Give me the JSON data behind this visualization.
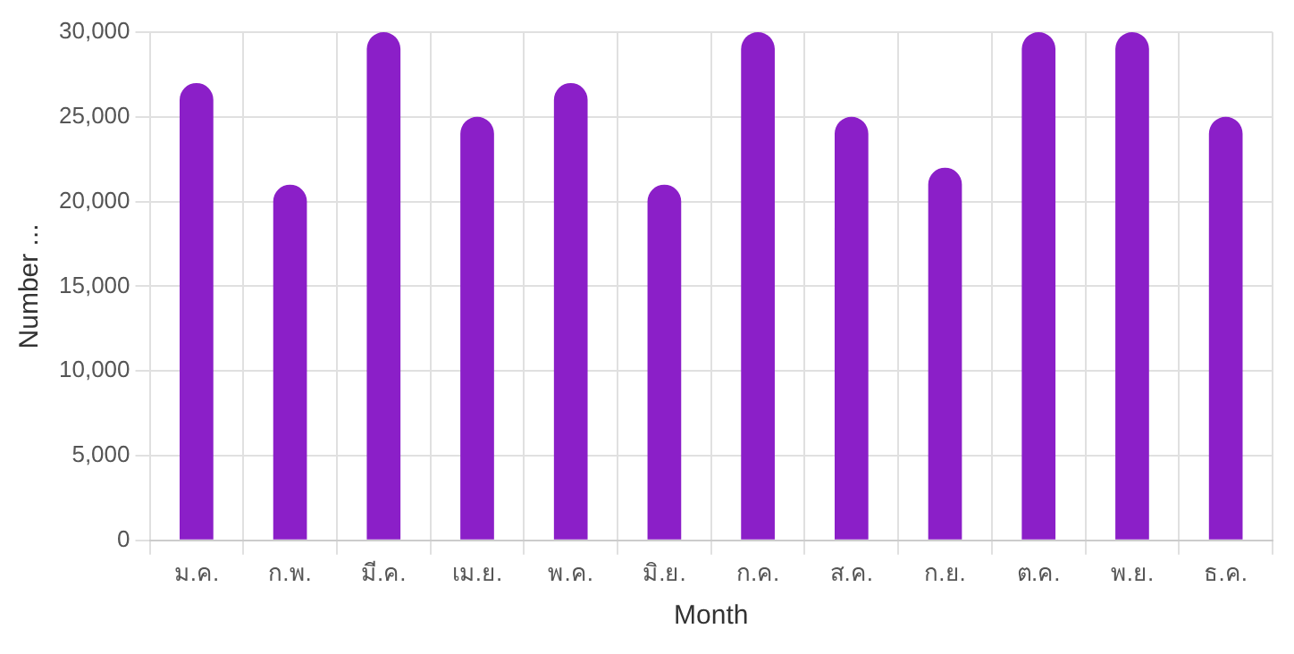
{
  "chart_data": {
    "type": "bar",
    "xlabel": "Month",
    "ylabel": "Number ...",
    "categories": [
      "ม.ค.",
      "ก.พ.",
      "มี.ค.",
      "เม.ย.",
      "พ.ค.",
      "มิ.ย.",
      "ก.ค.",
      "ส.ค.",
      "ก.ย.",
      "ต.ค.",
      "พ.ย.",
      "ธ.ค."
    ],
    "values": [
      27000,
      21000,
      30000,
      25000,
      27000,
      21000,
      30000,
      25000,
      22000,
      30000,
      30000,
      25000
    ],
    "color": "#8b1fc8",
    "ylim": [
      0,
      30000
    ],
    "yticks": [
      0,
      {
        "value": 5000,
        "label": "5,000"
      },
      {
        "value": 10000,
        "label": "10,000"
      },
      {
        "value": 15000,
        "label": "15,000"
      },
      {
        "value": 20000,
        "label": "20,000"
      },
      {
        "value": 25000,
        "label": "25,000"
      },
      {
        "value": 30000,
        "label": "30,000"
      }
    ],
    "grid": true,
    "legend": false
  }
}
